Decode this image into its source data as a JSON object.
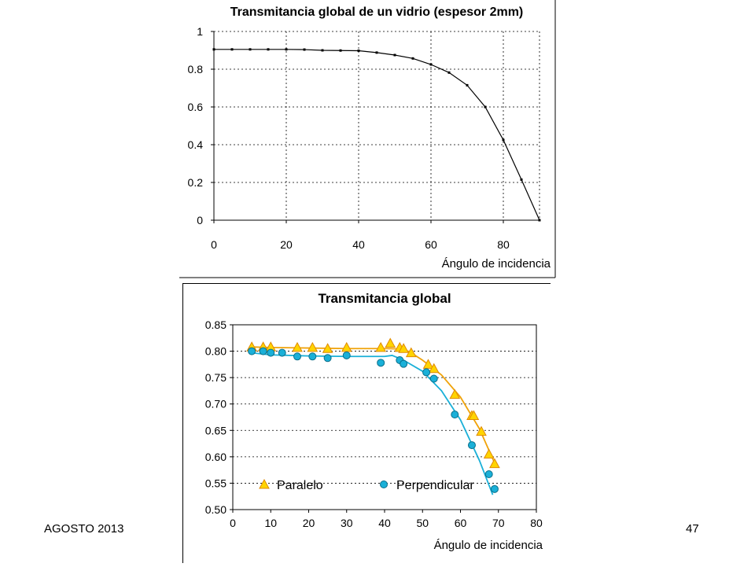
{
  "footer": {
    "date": "AGOSTO 2013",
    "page_number": "47"
  },
  "chart_data": [
    {
      "type": "line",
      "title": "Transmitancia global de un vidrio (espesor 2mm)",
      "xlabel": "Ángulo de incidencia",
      "ylabel": "",
      "xlim": [
        0,
        90
      ],
      "ylim": [
        0,
        1
      ],
      "xticks": [
        "0",
        "20",
        "40",
        "60",
        "80"
      ],
      "yticks": [
        "0",
        "0.2",
        "0.4",
        "0.6",
        "0.8",
        "1"
      ],
      "grid": true,
      "legend": "none",
      "series": [
        {
          "color": "#000000",
          "x": [
            0,
            5,
            10,
            15,
            20,
            25,
            30,
            35,
            40,
            45,
            50,
            55,
            60,
            65,
            70,
            75,
            80,
            85,
            90
          ],
          "y": [
            0.905,
            0.905,
            0.905,
            0.905,
            0.905,
            0.904,
            0.9,
            0.899,
            0.898,
            0.888,
            0.875,
            0.857,
            0.825,
            0.782,
            0.715,
            0.6,
            0.425,
            0.215,
            0.0
          ]
        }
      ]
    },
    {
      "type": "scatter",
      "title": "Transmitancia global",
      "xlabel": "Ángulo de incidencia",
      "ylabel": "",
      "xlim": [
        0,
        80
      ],
      "ylim": [
        0.5,
        0.85
      ],
      "xticks": [
        "0",
        "10",
        "20",
        "30",
        "40",
        "50",
        "60",
        "70",
        "80"
      ],
      "yticks": [
        "0.50",
        "0.55",
        "0.60",
        "0.65",
        "0.70",
        "0.75",
        "0.80",
        "0.85"
      ],
      "grid": true,
      "legend": "bottom",
      "series": [
        {
          "name": "Paralelo",
          "color": "#f0a30a",
          "marker": "triangle",
          "x": [
            5,
            8,
            10,
            17,
            21,
            25,
            30,
            39,
            41.5,
            44,
            45,
            47,
            51.5,
            53,
            58.5,
            63,
            63.5,
            65.5,
            67.5,
            69
          ],
          "y": [
            0.808,
            0.808,
            0.808,
            0.807,
            0.807,
            0.805,
            0.807,
            0.807,
            0.815,
            0.807,
            0.805,
            0.797,
            0.775,
            0.767,
            0.718,
            0.678,
            0.678,
            0.648,
            0.605,
            0.587
          ],
          "fit": {
            "x": [
              5,
              10,
              20,
              30,
              40,
              45,
              47,
              50,
              55,
              60,
              65,
              69
            ],
            "y": [
              0.808,
              0.807,
              0.806,
              0.805,
              0.805,
              0.804,
              0.797,
              0.783,
              0.755,
              0.713,
              0.653,
              0.588
            ]
          }
        },
        {
          "name": "Perpendicular",
          "color": "#1ab0d8",
          "marker": "circle",
          "x": [
            5,
            8,
            10,
            13,
            17,
            21,
            25,
            30,
            39,
            44,
            45,
            51,
            53,
            58.5,
            63,
            67.5,
            69
          ],
          "y": [
            0.8,
            0.8,
            0.797,
            0.797,
            0.79,
            0.79,
            0.787,
            0.792,
            0.778,
            0.783,
            0.776,
            0.76,
            0.748,
            0.68,
            0.622,
            0.567,
            0.539
          ],
          "fit": {
            "x": [
              5,
              10,
              20,
              30,
              40,
              42,
              45,
              50,
              55,
              60,
              65,
              68.5
            ],
            "y": [
              0.797,
              0.793,
              0.791,
              0.79,
              0.79,
              0.792,
              0.783,
              0.762,
              0.725,
              0.67,
              0.593,
              0.528
            ]
          }
        }
      ]
    }
  ]
}
